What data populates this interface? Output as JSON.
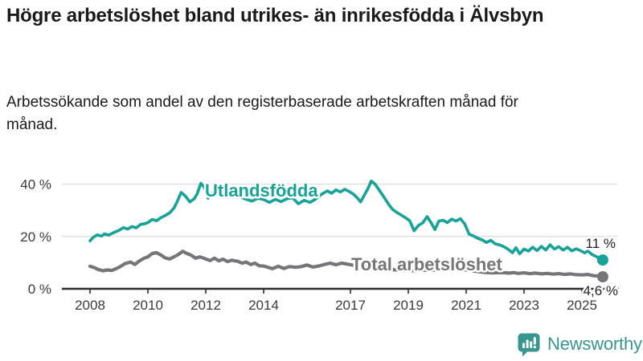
{
  "header": {
    "title": "Högre arbetslöshet bland utrikes- än inrikesfödda i Älvsbyn",
    "subtitle": "Arbetssökande som andel av den registerbaserade arbetskraften månad för månad."
  },
  "chart_data": {
    "type": "line",
    "title": "Högre arbetslöshet bland utrikes- än inrikesfödda i Älvsbyn",
    "xlabel": "",
    "ylabel": "Arbetssökande som andel av den registerbaserade arbetskraften (%)",
    "unit": "%",
    "ylim": [
      0,
      44
    ],
    "xlim": [
      2007.5,
      2026.3
    ],
    "grid": "horizontal",
    "legend_position": "inline",
    "x_ticks": [
      "2008",
      "2010",
      "2012",
      "2014",
      "2017",
      "2019",
      "2021",
      "2023",
      "2025"
    ],
    "x_tick_years": [
      2008,
      2010,
      2012,
      2014,
      2017,
      2019,
      2021,
      2023,
      2025
    ],
    "y_ticks": [
      {
        "value": 0,
        "label": "0 %"
      },
      {
        "value": 20,
        "label": "20 %"
      },
      {
        "value": 40,
        "label": "40 %"
      }
    ],
    "series": [
      {
        "name": "Utlandsfödda",
        "color": "#17a398",
        "end_label": "11 %",
        "end_value": 11,
        "points": [
          [
            2008.0,
            18.3
          ],
          [
            2008.1,
            19.6
          ],
          [
            2008.25,
            20.6
          ],
          [
            2008.4,
            20.1
          ],
          [
            2008.5,
            21.0
          ],
          [
            2008.65,
            20.5
          ],
          [
            2008.8,
            21.4
          ],
          [
            2009.0,
            22.3
          ],
          [
            2009.15,
            23.4
          ],
          [
            2009.3,
            22.8
          ],
          [
            2009.45,
            23.8
          ],
          [
            2009.6,
            23.3
          ],
          [
            2009.75,
            24.6
          ],
          [
            2009.9,
            24.9
          ],
          [
            2010.0,
            25.3
          ],
          [
            2010.15,
            26.5
          ],
          [
            2010.3,
            26.0
          ],
          [
            2010.45,
            27.2
          ],
          [
            2010.6,
            28.0
          ],
          [
            2010.75,
            29.0
          ],
          [
            2010.9,
            30.8
          ],
          [
            2011.0,
            33.0
          ],
          [
            2011.15,
            36.8
          ],
          [
            2011.3,
            35.4
          ],
          [
            2011.45,
            33.2
          ],
          [
            2011.6,
            34.4
          ],
          [
            2011.7,
            36.2
          ],
          [
            2011.83,
            40.3
          ],
          [
            2011.95,
            38.8
          ],
          [
            2012.08,
            34.6
          ],
          [
            2012.2,
            36.4
          ],
          [
            2012.35,
            37.2
          ],
          [
            2012.5,
            36.2
          ],
          [
            2012.65,
            37.4
          ],
          [
            2012.8,
            36.7
          ],
          [
            2013.0,
            36.3
          ],
          [
            2013.2,
            35.1
          ],
          [
            2013.4,
            34.2
          ],
          [
            2013.6,
            33.5
          ],
          [
            2013.8,
            34.6
          ],
          [
            2014.0,
            34.1
          ],
          [
            2014.2,
            33.0
          ],
          [
            2014.4,
            34.2
          ],
          [
            2014.6,
            33.3
          ],
          [
            2014.8,
            34.4
          ],
          [
            2015.0,
            34.8
          ],
          [
            2015.2,
            32.5
          ],
          [
            2015.4,
            33.8
          ],
          [
            2015.6,
            33.0
          ],
          [
            2015.8,
            34.3
          ],
          [
            2016.0,
            36.1
          ],
          [
            2016.2,
            37.4
          ],
          [
            2016.35,
            36.5
          ],
          [
            2016.5,
            37.8
          ],
          [
            2016.65,
            37.0
          ],
          [
            2016.8,
            38.0
          ],
          [
            2016.95,
            37.2
          ],
          [
            2017.1,
            36.2
          ],
          [
            2017.25,
            34.6
          ],
          [
            2017.35,
            33.2
          ],
          [
            2017.5,
            36.2
          ],
          [
            2017.62,
            38.6
          ],
          [
            2017.72,
            41.2
          ],
          [
            2017.85,
            40.0
          ],
          [
            2018.0,
            37.6
          ],
          [
            2018.15,
            35.2
          ],
          [
            2018.3,
            32.6
          ],
          [
            2018.45,
            30.4
          ],
          [
            2018.6,
            29.2
          ],
          [
            2018.75,
            28.2
          ],
          [
            2018.9,
            27.2
          ],
          [
            2019.05,
            26.0
          ],
          [
            2019.2,
            22.2
          ],
          [
            2019.35,
            24.2
          ],
          [
            2019.5,
            25.2
          ],
          [
            2019.65,
            27.6
          ],
          [
            2019.8,
            25.0
          ],
          [
            2019.92,
            22.6
          ],
          [
            2020.05,
            25.8
          ],
          [
            2020.2,
            26.2
          ],
          [
            2020.35,
            25.3
          ],
          [
            2020.5,
            26.6
          ],
          [
            2020.65,
            25.9
          ],
          [
            2020.8,
            26.8
          ],
          [
            2020.95,
            24.8
          ],
          [
            2021.1,
            20.9
          ],
          [
            2021.25,
            20.2
          ],
          [
            2021.4,
            19.3
          ],
          [
            2021.55,
            18.7
          ],
          [
            2021.7,
            17.7
          ],
          [
            2021.85,
            18.5
          ],
          [
            2022.0,
            17.2
          ],
          [
            2022.15,
            16.8
          ],
          [
            2022.3,
            16.1
          ],
          [
            2022.45,
            15.1
          ],
          [
            2022.6,
            13.8
          ],
          [
            2022.72,
            15.7
          ],
          [
            2022.85,
            13.4
          ],
          [
            2023.0,
            15.2
          ],
          [
            2023.15,
            14.4
          ],
          [
            2023.3,
            15.9
          ],
          [
            2023.45,
            14.6
          ],
          [
            2023.6,
            16.2
          ],
          [
            2023.75,
            14.8
          ],
          [
            2023.9,
            16.8
          ],
          [
            2024.05,
            15.2
          ],
          [
            2024.2,
            16.1
          ],
          [
            2024.35,
            14.8
          ],
          [
            2024.5,
            15.9
          ],
          [
            2024.65,
            14.5
          ],
          [
            2024.8,
            15.3
          ],
          [
            2024.95,
            14.6
          ],
          [
            2025.1,
            13.7
          ],
          [
            2025.2,
            14.5
          ],
          [
            2025.35,
            13.1
          ],
          [
            2025.5,
            12.3
          ],
          [
            2025.62,
            11.6
          ],
          [
            2025.72,
            11.0
          ]
        ]
      },
      {
        "name": "Total arbetslöshet",
        "color": "#76767a",
        "end_label": "4,6 %",
        "end_value": 4.6,
        "points": [
          [
            2008.0,
            8.6
          ],
          [
            2008.15,
            8.1
          ],
          [
            2008.3,
            7.3
          ],
          [
            2008.45,
            6.9
          ],
          [
            2008.6,
            7.2
          ],
          [
            2008.75,
            7.0
          ],
          [
            2008.9,
            7.7
          ],
          [
            2009.05,
            8.5
          ],
          [
            2009.2,
            9.6
          ],
          [
            2009.4,
            10.2
          ],
          [
            2009.55,
            9.3
          ],
          [
            2009.7,
            10.6
          ],
          [
            2009.85,
            11.6
          ],
          [
            2010.0,
            12.2
          ],
          [
            2010.15,
            13.5
          ],
          [
            2010.3,
            13.8
          ],
          [
            2010.45,
            12.9
          ],
          [
            2010.6,
            11.8
          ],
          [
            2010.75,
            11.4
          ],
          [
            2010.9,
            12.2
          ],
          [
            2011.05,
            13.1
          ],
          [
            2011.2,
            14.3
          ],
          [
            2011.35,
            13.5
          ],
          [
            2011.5,
            12.8
          ],
          [
            2011.65,
            11.7
          ],
          [
            2011.8,
            12.2
          ],
          [
            2012.0,
            11.4
          ],
          [
            2012.15,
            10.8
          ],
          [
            2012.3,
            11.7
          ],
          [
            2012.45,
            10.7
          ],
          [
            2012.6,
            11.3
          ],
          [
            2012.75,
            10.4
          ],
          [
            2012.9,
            10.9
          ],
          [
            2013.1,
            10.5
          ],
          [
            2013.25,
            9.8
          ],
          [
            2013.4,
            10.2
          ],
          [
            2013.55,
            9.3
          ],
          [
            2013.7,
            9.8
          ],
          [
            2013.85,
            8.8
          ],
          [
            2014.0,
            8.7
          ],
          [
            2014.15,
            8.2
          ],
          [
            2014.3,
            7.7
          ],
          [
            2014.5,
            8.6
          ],
          [
            2014.7,
            7.8
          ],
          [
            2014.9,
            8.5
          ],
          [
            2015.1,
            8.2
          ],
          [
            2015.3,
            8.5
          ],
          [
            2015.5,
            9.1
          ],
          [
            2015.7,
            8.3
          ],
          [
            2015.9,
            8.7
          ],
          [
            2016.1,
            9.3
          ],
          [
            2016.3,
            9.8
          ],
          [
            2016.5,
            9.2
          ],
          [
            2016.7,
            9.8
          ],
          [
            2016.9,
            9.4
          ],
          [
            2017.1,
            9.0
          ],
          [
            2017.4,
            8.6
          ],
          [
            2017.7,
            8.2
          ],
          [
            2018.0,
            7.8
          ],
          [
            2018.3,
            7.4
          ],
          [
            2018.6,
            7.2
          ],
          [
            2018.9,
            7.0
          ],
          [
            2019.2,
            6.9
          ],
          [
            2019.5,
            7.1
          ],
          [
            2019.8,
            7.0
          ],
          [
            2020.1,
            7.6
          ],
          [
            2020.4,
            8.0
          ],
          [
            2020.7,
            7.7
          ],
          [
            2021.0,
            7.2
          ],
          [
            2021.3,
            6.7
          ],
          [
            2021.6,
            6.3
          ],
          [
            2021.9,
            6.1
          ],
          [
            2022.2,
            6.2
          ],
          [
            2022.5,
            6.0
          ],
          [
            2022.65,
            6.2
          ],
          [
            2022.8,
            5.9
          ],
          [
            2023.0,
            6.1
          ],
          [
            2023.2,
            5.8
          ],
          [
            2023.4,
            6.0
          ],
          [
            2023.6,
            5.7
          ],
          [
            2023.8,
            5.9
          ],
          [
            2024.0,
            5.6
          ],
          [
            2024.2,
            5.8
          ],
          [
            2024.4,
            5.5
          ],
          [
            2024.6,
            5.7
          ],
          [
            2024.8,
            5.4
          ],
          [
            2025.0,
            5.3
          ],
          [
            2025.2,
            5.5
          ],
          [
            2025.4,
            5.0
          ],
          [
            2025.55,
            4.9
          ],
          [
            2025.72,
            4.6
          ]
        ]
      }
    ]
  },
  "logo": {
    "text": "Newsworthy",
    "icon": "newsworthy-chart-bubble-icon",
    "color": "#37968f"
  }
}
